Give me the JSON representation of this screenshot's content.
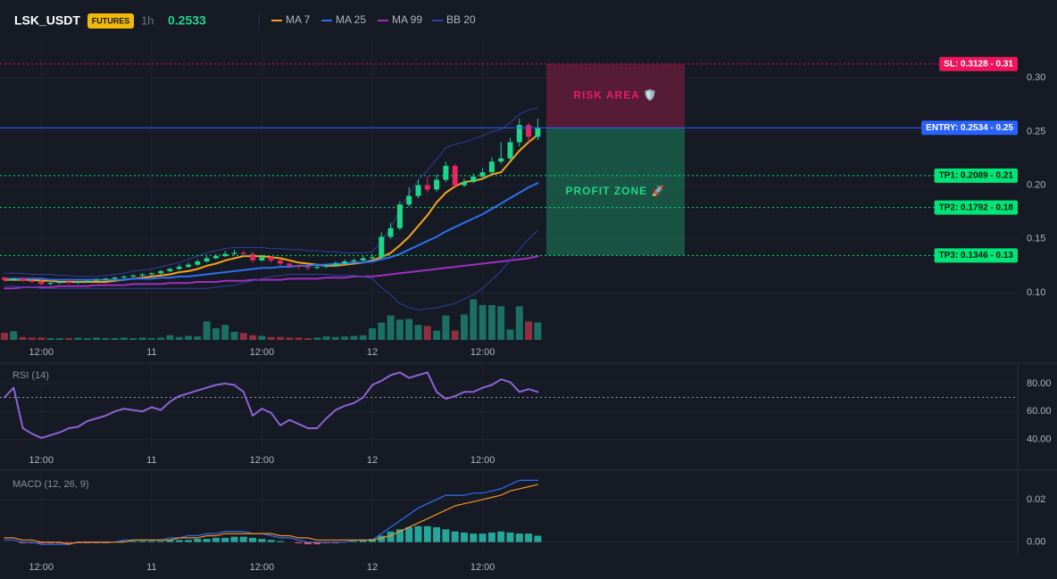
{
  "header": {
    "symbol": "LSK_USDT",
    "badge": "FUTURES",
    "interval": "1h",
    "price": 0.2533,
    "price_color": "#1ed68a"
  },
  "chart_data": [
    {
      "type": "candlestick",
      "categories": [
        null,
        null,
        null,
        null,
        "12:00",
        null,
        null,
        null,
        null,
        null,
        null,
        null,
        null,
        null,
        null,
        null,
        "11",
        null,
        null,
        null,
        null,
        null,
        null,
        null,
        null,
        null,
        null,
        null,
        "12:00",
        null,
        null,
        null,
        null,
        null,
        null,
        null,
        null,
        null,
        null,
        null,
        "12",
        null,
        null,
        null,
        null,
        null,
        null,
        null,
        null,
        null,
        null,
        null,
        "12:00",
        null,
        null,
        null,
        null,
        null,
        null
      ],
      "ylim": [
        0.056,
        0.335
      ],
      "yticks": [
        {
          "value": 0.1,
          "label": "0.10"
        },
        {
          "value": 0.15,
          "label": "0.15"
        },
        {
          "value": 0.2,
          "label": "0.20"
        },
        {
          "value": 0.25,
          "label": "0.25"
        },
        {
          "value": 0.3,
          "label": "0.30"
        }
      ],
      "up_color": "#1ed68a",
      "down_color": "#e8245f",
      "open": [
        0.114,
        0.112,
        0.113,
        0.111,
        0.11,
        0.108,
        0.109,
        0.11,
        0.109,
        0.11,
        0.111,
        0.112,
        0.113,
        0.114,
        0.115,
        0.116,
        0.117,
        0.118,
        0.12,
        0.122,
        0.124,
        0.126,
        0.129,
        0.132,
        0.134,
        0.136,
        0.137,
        0.136,
        0.13,
        0.133,
        0.13,
        0.127,
        0.125,
        0.124,
        0.123,
        0.124,
        0.125,
        0.127,
        0.129,
        0.13,
        0.132,
        0.133,
        0.152,
        0.16,
        0.182,
        0.19,
        0.2,
        0.196,
        0.205,
        0.218,
        0.2,
        0.203,
        0.208,
        0.212,
        0.222,
        0.225,
        0.24,
        0.256,
        0.245
      ],
      "high": [
        0.115,
        0.114,
        0.114,
        0.112,
        0.112,
        0.11,
        0.111,
        0.111,
        0.111,
        0.112,
        0.113,
        0.114,
        0.115,
        0.116,
        0.117,
        0.118,
        0.119,
        0.121,
        0.123,
        0.126,
        0.128,
        0.131,
        0.134,
        0.136,
        0.139,
        0.14,
        0.139,
        0.138,
        0.135,
        0.134,
        0.131,
        0.128,
        0.126,
        0.125,
        0.126,
        0.127,
        0.129,
        0.131,
        0.132,
        0.134,
        0.136,
        0.156,
        0.165,
        0.185,
        0.198,
        0.205,
        0.208,
        0.21,
        0.222,
        0.22,
        0.206,
        0.211,
        0.216,
        0.226,
        0.24,
        0.244,
        0.262,
        0.258,
        0.262
      ],
      "low": [
        0.11,
        0.111,
        0.11,
        0.109,
        0.107,
        0.107,
        0.108,
        0.108,
        0.108,
        0.109,
        0.11,
        0.111,
        0.112,
        0.113,
        0.114,
        0.115,
        0.116,
        0.117,
        0.119,
        0.121,
        0.123,
        0.125,
        0.128,
        0.131,
        0.133,
        0.135,
        0.134,
        0.128,
        0.129,
        0.128,
        0.125,
        0.123,
        0.122,
        0.121,
        0.122,
        0.123,
        0.124,
        0.126,
        0.128,
        0.129,
        0.131,
        0.132,
        0.15,
        0.158,
        0.18,
        0.188,
        0.193,
        0.194,
        0.203,
        0.197,
        0.198,
        0.202,
        0.206,
        0.21,
        0.22,
        0.222,
        0.236,
        0.24,
        0.242
      ],
      "close": [
        0.112,
        0.113,
        0.111,
        0.11,
        0.108,
        0.109,
        0.11,
        0.109,
        0.11,
        0.111,
        0.112,
        0.113,
        0.114,
        0.115,
        0.116,
        0.117,
        0.118,
        0.12,
        0.122,
        0.124,
        0.126,
        0.129,
        0.132,
        0.134,
        0.136,
        0.137,
        0.136,
        0.13,
        0.133,
        0.13,
        0.127,
        0.125,
        0.124,
        0.123,
        0.124,
        0.125,
        0.127,
        0.129,
        0.13,
        0.132,
        0.133,
        0.152,
        0.16,
        0.182,
        0.19,
        0.2,
        0.196,
        0.205,
        0.218,
        0.2,
        0.203,
        0.208,
        0.212,
        0.222,
        0.225,
        0.24,
        0.256,
        0.245,
        0.2533
      ],
      "volume": {
        "up_color": "#1b6f63",
        "down_color": "#8f2f40",
        "values": [
          12,
          15,
          5,
          4,
          4,
          3,
          3,
          3,
          4,
          3,
          4,
          3,
          3,
          4,
          3,
          4,
          3,
          4,
          8,
          5,
          7,
          6,
          32,
          20,
          26,
          14,
          12,
          8,
          7,
          5,
          5,
          4,
          4,
          3,
          4,
          6,
          5,
          6,
          7,
          8,
          20,
          30,
          42,
          35,
          36,
          26,
          24,
          16,
          42,
          16,
          44,
          70,
          60,
          60,
          58,
          18,
          58,
          32,
          30
        ]
      },
      "series": [
        {
          "name": "MA 7",
          "color": "#f7a21b",
          "values": [
            0.112,
            0.112,
            0.112,
            0.112,
            0.111,
            0.111,
            0.11,
            0.11,
            0.11,
            0.11,
            0.11,
            0.11,
            0.111,
            0.112,
            0.113,
            0.114,
            0.115,
            0.116,
            0.117,
            0.119,
            0.12,
            0.122,
            0.125,
            0.127,
            0.13,
            0.132,
            0.134,
            0.134,
            0.134,
            0.133,
            0.132,
            0.13,
            0.128,
            0.127,
            0.126,
            0.125,
            0.125,
            0.126,
            0.127,
            0.128,
            0.13,
            0.133,
            0.137,
            0.144,
            0.152,
            0.162,
            0.172,
            0.184,
            0.193,
            0.199,
            0.203,
            0.204,
            0.206,
            0.21,
            0.212,
            0.222,
            0.232,
            0.24,
            0.247
          ]
        },
        {
          "name": "MA 25",
          "color": "#2e6ff0",
          "values": [
            0.113,
            0.113,
            0.113,
            0.113,
            0.113,
            0.112,
            0.112,
            0.112,
            0.112,
            0.112,
            0.112,
            0.112,
            0.112,
            0.112,
            0.113,
            0.113,
            0.113,
            0.114,
            0.114,
            0.115,
            0.115,
            0.116,
            0.117,
            0.118,
            0.119,
            0.12,
            0.121,
            0.122,
            0.123,
            0.123,
            0.124,
            0.124,
            0.125,
            0.125,
            0.126,
            0.126,
            0.127,
            0.127,
            0.128,
            0.128,
            0.129,
            0.131,
            0.133,
            0.136,
            0.14,
            0.144,
            0.148,
            0.152,
            0.157,
            0.161,
            0.165,
            0.169,
            0.173,
            0.178,
            0.183,
            0.188,
            0.193,
            0.198,
            0.202
          ]
        },
        {
          "name": "MA 99",
          "color": "#a02fc0",
          "values": [
            0.104,
            0.104,
            0.105,
            0.105,
            0.105,
            0.105,
            0.106,
            0.106,
            0.106,
            0.106,
            0.107,
            0.107,
            0.107,
            0.107,
            0.108,
            0.108,
            0.108,
            0.108,
            0.109,
            0.109,
            0.109,
            0.11,
            0.11,
            0.11,
            0.111,
            0.111,
            0.111,
            0.112,
            0.112,
            0.112,
            0.112,
            0.113,
            0.113,
            0.113,
            0.113,
            0.114,
            0.114,
            0.114,
            0.115,
            0.115,
            0.115,
            0.116,
            0.117,
            0.118,
            0.119,
            0.12,
            0.121,
            0.122,
            0.123,
            0.124,
            0.125,
            0.126,
            0.127,
            0.128,
            0.129,
            0.13,
            0.131,
            0.132,
            0.134
          ]
        },
        {
          "name": "BB 20",
          "color": "#2f3f9e",
          "upper": [
            0.118,
            0.118,
            0.118,
            0.117,
            0.117,
            0.117,
            0.116,
            0.116,
            0.115,
            0.115,
            0.115,
            0.116,
            0.117,
            0.118,
            0.12,
            0.121,
            0.122,
            0.124,
            0.126,
            0.128,
            0.131,
            0.134,
            0.137,
            0.139,
            0.141,
            0.142,
            0.142,
            0.142,
            0.142,
            0.141,
            0.141,
            0.14,
            0.14,
            0.139,
            0.139,
            0.138,
            0.138,
            0.137,
            0.137,
            0.137,
            0.138,
            0.148,
            0.16,
            0.178,
            0.192,
            0.205,
            0.214,
            0.224,
            0.235,
            0.238,
            0.24,
            0.243,
            0.246,
            0.25,
            0.252,
            0.258,
            0.266,
            0.27,
            0.272
          ],
          "lower": [
            0.106,
            0.106,
            0.105,
            0.105,
            0.104,
            0.104,
            0.104,
            0.104,
            0.104,
            0.104,
            0.104,
            0.104,
            0.104,
            0.104,
            0.104,
            0.104,
            0.104,
            0.104,
            0.104,
            0.104,
            0.104,
            0.104,
            0.104,
            0.105,
            0.106,
            0.107,
            0.109,
            0.111,
            0.113,
            0.115,
            0.116,
            0.117,
            0.117,
            0.117,
            0.117,
            0.117,
            0.116,
            0.116,
            0.116,
            0.115,
            0.113,
            0.105,
            0.098,
            0.09,
            0.086,
            0.084,
            0.085,
            0.086,
            0.088,
            0.09,
            0.094,
            0.098,
            0.104,
            0.112,
            0.12,
            0.13,
            0.14,
            0.15,
            0.158
          ]
        }
      ],
      "levels": [
        {
          "value": 0.3128,
          "label": "SL: 0.3128 - 0.31",
          "color": "#f0145a",
          "text_color": "#ffffff",
          "dotted": true
        },
        {
          "value": 0.2534,
          "label": "ENTRY: 0.2534 - 0.25",
          "color": "#2962ff",
          "text_color": "#ffffff",
          "dotted": false
        },
        {
          "value": 0.2089,
          "label": "TP1: 0.2089 - 0.21",
          "color": "#00e676",
          "text_color": "#0b1a12",
          "dotted": true
        },
        {
          "value": 0.1792,
          "label": "TP2: 0.1792 - 0.18",
          "color": "#00e676",
          "text_color": "#0b1a12",
          "dotted": true
        },
        {
          "value": 0.1346,
          "label": "TP3: 0.1346 - 0.13",
          "color": "#00e676",
          "text_color": "#0b1a12",
          "dotted": true
        }
      ],
      "zones": [
        {
          "label": "RISK AREA 🛡️",
          "from": 0.3128,
          "to": 0.2534,
          "color": "#e91e63"
        },
        {
          "label": "PROFIT ZONE 🚀",
          "from": 0.2534,
          "to": 0.1346,
          "color": "#1ed68a"
        }
      ]
    },
    {
      "type": "line",
      "title": "RSI (14)",
      "ylim": [
        32,
        94
      ],
      "yticks": [
        {
          "value": 40,
          "label": "40.00"
        },
        {
          "value": 60,
          "label": "60.00"
        },
        {
          "value": 80,
          "label": "80.00"
        }
      ],
      "ref_line": 70,
      "color": "#8e63d6",
      "values": [
        70,
        77,
        48,
        44,
        41,
        43,
        45,
        48,
        49,
        53,
        55,
        57,
        60,
        62,
        61,
        60,
        63,
        61,
        67,
        71,
        73,
        75,
        77,
        79,
        80,
        79,
        74,
        57,
        62,
        59,
        50,
        54,
        51,
        48,
        48,
        55,
        61,
        64,
        66,
        70,
        79,
        82,
        86,
        88,
        84,
        86,
        88,
        74,
        69,
        71,
        74,
        74,
        77,
        79,
        83,
        81,
        74,
        76,
        74
      ]
    },
    {
      "type": "macd",
      "title": "MACD (12, 26, 9)",
      "ylim": [
        -0.006,
        0.0325
      ],
      "yticks": [
        {
          "value": 0,
          "label": "0.00"
        },
        0.02
      ],
      "histogram": {
        "up_color": "#26a69a",
        "down_color": "#e05260",
        "values": [
          0,
          0,
          -0.0005,
          -0.0005,
          -0.0005,
          -0.0005,
          -0.0005,
          -0.0005,
          -0.0005,
          -0.0005,
          -0.0005,
          -0.0005,
          0,
          0.0005,
          0.0005,
          0.0005,
          0.0005,
          0.0005,
          0.001,
          0.001,
          0.001,
          0.0015,
          0.0015,
          0.002,
          0.002,
          0.0025,
          0.0025,
          0.002,
          0.0015,
          0.001,
          0.0005,
          0,
          -0.0005,
          -0.001,
          -0.001,
          -0.0005,
          -0.0005,
          0,
          0.0005,
          0.001,
          0.0015,
          0.003,
          0.005,
          0.006,
          0.007,
          0.0075,
          0.0075,
          0.007,
          0.006,
          0.005,
          0.0045,
          0.004,
          0.004,
          0.0045,
          0.005,
          0.0045,
          0.004,
          0.004,
          0.003
        ]
      },
      "series": [
        {
          "color": "#2e6ff0",
          "values": [
            0.001,
            0.001,
            0,
            0,
            -0.001,
            -0.001,
            -0.001,
            -0.001,
            0,
            0,
            0,
            0,
            0,
            0.001,
            0.001,
            0.001,
            0.001,
            0.001,
            0.002,
            0.002,
            0.003,
            0.003,
            0.004,
            0.004,
            0.005,
            0.005,
            0.005,
            0.004,
            0.004,
            0.003,
            0.002,
            0.002,
            0.001,
            0,
            0,
            0,
            0,
            0,
            0.001,
            0.001,
            0.001,
            0.004,
            0.007,
            0.01,
            0.013,
            0.016,
            0.018,
            0.02,
            0.022,
            0.022,
            0.022,
            0.023,
            0.023,
            0.024,
            0.025,
            0.027,
            0.029,
            0.029,
            0.029
          ]
        },
        {
          "color": "#f7931e",
          "values": [
            0.002,
            0.002,
            0.001,
            0.001,
            0,
            0,
            0,
            -0.001,
            0,
            0,
            0,
            0,
            0,
            0,
            0.001,
            0.001,
            0.001,
            0.001,
            0.001,
            0.002,
            0.002,
            0.002,
            0.003,
            0.003,
            0.004,
            0.004,
            0.004,
            0.004,
            0.004,
            0.004,
            0.003,
            0.003,
            0.002,
            0.002,
            0.001,
            0.001,
            0.001,
            0.001,
            0.001,
            0.001,
            0.001,
            0.002,
            0.003,
            0.005,
            0.007,
            0.009,
            0.011,
            0.013,
            0.015,
            0.017,
            0.018,
            0.019,
            0.02,
            0.021,
            0.022,
            0.024,
            0.025,
            0.026,
            0.027
          ]
        }
      ]
    }
  ]
}
